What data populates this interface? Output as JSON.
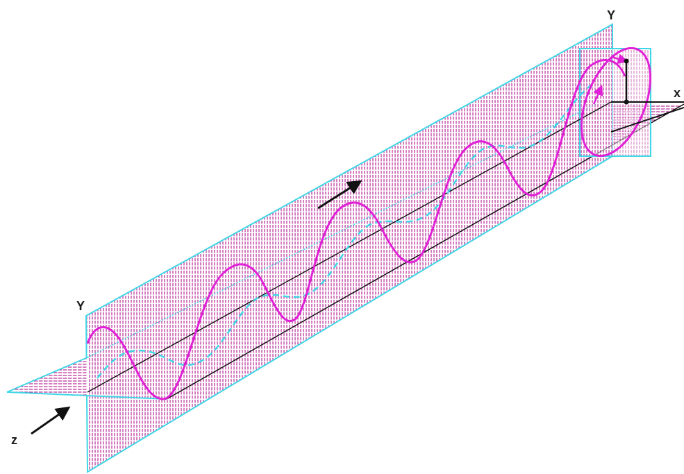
{
  "labels": {
    "y_front": "Y",
    "y_back": "Y",
    "x_axis": "x",
    "z_axis": "z"
  },
  "colors": {
    "vertical_plane_hatch": "#b0158e",
    "horizontal_plane_hatch": "#b0158e",
    "plane_border": "#3fd6e6",
    "wave_curve": "#e020d6",
    "projection_curve": "#3fd6e6",
    "arrow": "#111111",
    "axis_line": "#111111"
  },
  "icons": {
    "propagation_arrow": "arrow-icon",
    "z_direction_arrow": "arrow-icon"
  }
}
